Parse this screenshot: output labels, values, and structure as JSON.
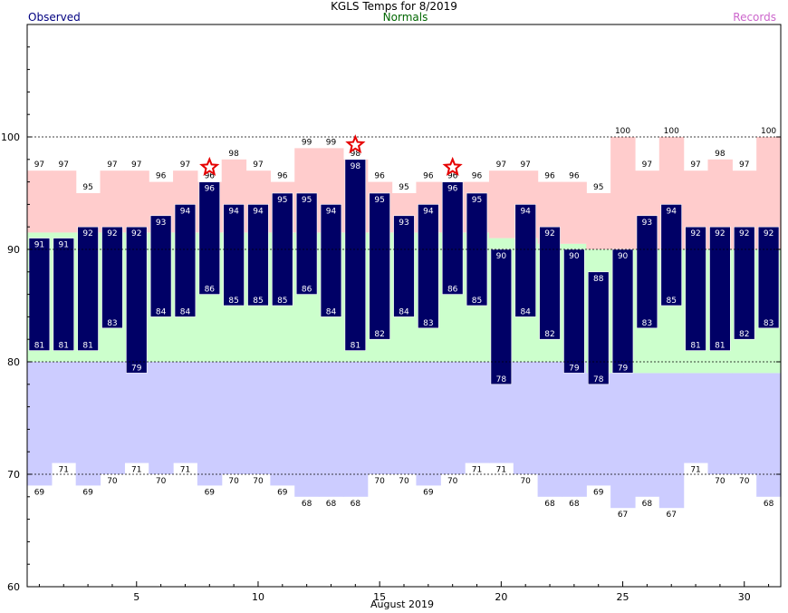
{
  "header": {
    "title": "KGLS Temps for 8/2019",
    "legend_observed": "Observed",
    "legend_normals": "Normals",
    "legend_records": "Records"
  },
  "colors": {
    "observed": "#000066",
    "observed_label": "#000080",
    "normals": "#006600",
    "normal_band": "#ccffcc",
    "records": "#cc66cc",
    "record_high_band": "#ffcccc",
    "record_low_band": "#ccccff",
    "star": "#e60000"
  },
  "chart_data": {
    "type": "bar",
    "title": "KGLS Temps for 8/2019",
    "xlabel": "August 2019",
    "ylabel": "",
    "x": [
      1,
      2,
      3,
      4,
      5,
      6,
      7,
      8,
      9,
      10,
      11,
      12,
      13,
      14,
      15,
      16,
      17,
      18,
      19,
      20,
      21,
      22,
      23,
      24,
      25,
      26,
      27,
      28,
      29,
      30,
      31
    ],
    "x_ticks": [
      5,
      10,
      15,
      20,
      25,
      30
    ],
    "ylim": [
      60,
      110
    ],
    "y_ticks": [
      60,
      70,
      80,
      90,
      100
    ],
    "grid": "dashed at 70, 80, 90, 100",
    "series": [
      {
        "name": "Observed",
        "kind": "high",
        "values": [
          91,
          91,
          92,
          92,
          92,
          93,
          94,
          96,
          94,
          94,
          95,
          95,
          94,
          98,
          95,
          93,
          94,
          96,
          95,
          90,
          94,
          92,
          90,
          88,
          90,
          93,
          94,
          92,
          92,
          92,
          92
        ]
      },
      {
        "name": "Observed",
        "kind": "low",
        "values": [
          81,
          81,
          81,
          83,
          79,
          84,
          84,
          86,
          85,
          85,
          85,
          86,
          84,
          81,
          82,
          84,
          83,
          86,
          85,
          78,
          84,
          82,
          79,
          78,
          79,
          83,
          85,
          81,
          81,
          82,
          83
        ]
      },
      {
        "name": "Normals",
        "kind": "high",
        "values": [
          91.5,
          91.5,
          91.5,
          91.5,
          91.5,
          91.5,
          91.5,
          91.5,
          91.5,
          91.5,
          91.5,
          91.5,
          91.5,
          91.5,
          91.5,
          91.5,
          91.5,
          91.5,
          91.5,
          91,
          91,
          90.5,
          90.5,
          90,
          90,
          90,
          90,
          90,
          90,
          90,
          90
        ]
      },
      {
        "name": "Normals",
        "kind": "low",
        "values": [
          80,
          80,
          80,
          80,
          80,
          80,
          80,
          80,
          80,
          80,
          80,
          80,
          80,
          80,
          80,
          80,
          80,
          80,
          80,
          80,
          80,
          80,
          80,
          79,
          79,
          79,
          79,
          79,
          79,
          79,
          79
        ]
      },
      {
        "name": "Records",
        "kind": "high",
        "values": [
          97,
          97,
          95,
          97,
          97,
          96,
          97,
          96,
          98,
          97,
          96,
          99,
          99,
          98,
          96,
          95,
          96,
          96,
          96,
          97,
          97,
          96,
          96,
          95,
          100,
          97,
          100,
          97,
          98,
          97,
          100
        ]
      },
      {
        "name": "Records",
        "kind": "low",
        "values": [
          69,
          71,
          69,
          70,
          71,
          70,
          71,
          69,
          70,
          70,
          69,
          68,
          68,
          68,
          70,
          70,
          69,
          70,
          71,
          71,
          70,
          68,
          68,
          69,
          67,
          68,
          67,
          71,
          70,
          70,
          68
        ]
      }
    ],
    "record_high_stars": [
      8,
      14,
      18
    ]
  }
}
